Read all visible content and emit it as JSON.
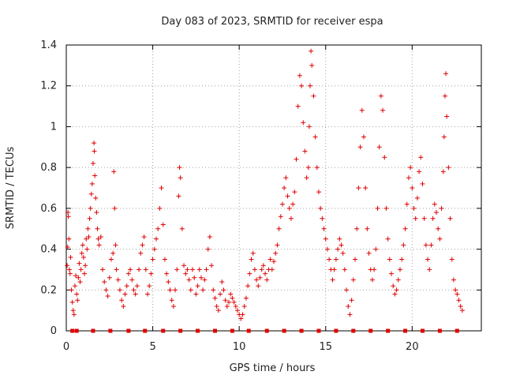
{
  "colors": {
    "marker": "#e00000",
    "axis": "#000000",
    "grid": "#a0a0a0",
    "text": "#222222"
  },
  "chart_data": {
    "type": "scatter",
    "title": "Day 083 of 2023, SRMTID for receiver espa",
    "xlabel": "GPS time / hours",
    "ylabel": "SRMTID / TECUs",
    "xlim": [
      0,
      24
    ],
    "ylim": [
      0,
      1.4
    ],
    "xticks": [
      0,
      5,
      10,
      15,
      20
    ],
    "xtick_labels": [
      "0",
      "5",
      "10",
      "15",
      "20"
    ],
    "yticks": [
      0,
      0.2,
      0.4,
      0.6,
      0.8,
      1.0,
      1.2,
      1.4
    ],
    "ytick_labels": [
      "0",
      "0.2",
      "0.4",
      "0.6",
      "0.8",
      "1",
      "1.2",
      "1.4"
    ],
    "grid": true,
    "marker": "+",
    "baseline_markers": {
      "y": 0,
      "x": [
        0.35,
        0.6,
        1.55,
        2.55,
        3.6,
        4.55,
        5.6,
        6.6,
        7.6,
        8.6,
        9.6,
        10.55,
        11.6,
        12.6,
        13.6,
        14.6,
        15.6,
        16.6,
        17.6,
        18.6,
        19.6,
        20.6,
        21.6,
        22.6
      ]
    },
    "points": [
      [
        0.05,
        0.32
      ],
      [
        0.08,
        0.41
      ],
      [
        0.1,
        0.58
      ],
      [
        0.12,
        0.56
      ],
      [
        0.15,
        0.45
      ],
      [
        0.18,
        0.3
      ],
      [
        0.22,
        0.28
      ],
      [
        0.25,
        0.36
      ],
      [
        0.3,
        0.2
      ],
      [
        0.35,
        0.14
      ],
      [
        0.4,
        0.1
      ],
      [
        0.45,
        0.08
      ],
      [
        0.5,
        0.22
      ],
      [
        0.55,
        0.27
      ],
      [
        0.6,
        0.18
      ],
      [
        0.65,
        0.15
      ],
      [
        0.7,
        0.26
      ],
      [
        0.75,
        0.33
      ],
      [
        0.8,
        0.24
      ],
      [
        0.85,
        0.3
      ],
      [
        0.9,
        0.38
      ],
      [
        0.95,
        0.42
      ],
      [
        1.0,
        0.36
      ],
      [
        1.05,
        0.28
      ],
      [
        1.1,
        0.32
      ],
      [
        1.15,
        0.45
      ],
      [
        1.2,
        0.4
      ],
      [
        1.25,
        0.5
      ],
      [
        1.3,
        0.46
      ],
      [
        1.35,
        0.55
      ],
      [
        1.4,
        0.6
      ],
      [
        1.45,
        0.67
      ],
      [
        1.5,
        0.72
      ],
      [
        1.55,
        0.82
      ],
      [
        1.6,
        0.92
      ],
      [
        1.62,
        0.88
      ],
      [
        1.65,
        0.76
      ],
      [
        1.7,
        0.65
      ],
      [
        1.75,
        0.58
      ],
      [
        1.8,
        0.5
      ],
      [
        1.85,
        0.45
      ],
      [
        1.9,
        0.42
      ],
      [
        2.0,
        0.46
      ],
      [
        2.1,
        0.3
      ],
      [
        2.2,
        0.24
      ],
      [
        2.3,
        0.2
      ],
      [
        2.4,
        0.17
      ],
      [
        2.5,
        0.26
      ],
      [
        2.6,
        0.35
      ],
      [
        2.7,
        0.38
      ],
      [
        2.75,
        0.78
      ],
      [
        2.8,
        0.6
      ],
      [
        2.85,
        0.42
      ],
      [
        2.9,
        0.3
      ],
      [
        3.0,
        0.25
      ],
      [
        3.1,
        0.2
      ],
      [
        3.2,
        0.15
      ],
      [
        3.3,
        0.12
      ],
      [
        3.4,
        0.18
      ],
      [
        3.5,
        0.22
      ],
      [
        3.6,
        0.28
      ],
      [
        3.7,
        0.3
      ],
      [
        3.8,
        0.25
      ],
      [
        3.9,
        0.2
      ],
      [
        4.0,
        0.18
      ],
      [
        4.1,
        0.22
      ],
      [
        4.2,
        0.3
      ],
      [
        4.3,
        0.38
      ],
      [
        4.4,
        0.42
      ],
      [
        4.5,
        0.46
      ],
      [
        4.6,
        0.3
      ],
      [
        4.7,
        0.18
      ],
      [
        4.8,
        0.22
      ],
      [
        4.9,
        0.28
      ],
      [
        5.0,
        0.35
      ],
      [
        5.1,
        0.4
      ],
      [
        5.2,
        0.45
      ],
      [
        5.3,
        0.5
      ],
      [
        5.4,
        0.6
      ],
      [
        5.5,
        0.7
      ],
      [
        5.6,
        0.52
      ],
      [
        5.7,
        0.35
      ],
      [
        5.8,
        0.28
      ],
      [
        5.9,
        0.24
      ],
      [
        6.0,
        0.2
      ],
      [
        6.1,
        0.15
      ],
      [
        6.2,
        0.12
      ],
      [
        6.3,
        0.2
      ],
      [
        6.4,
        0.3
      ],
      [
        6.5,
        0.66
      ],
      [
        6.55,
        0.8
      ],
      [
        6.6,
        0.75
      ],
      [
        6.7,
        0.5
      ],
      [
        6.8,
        0.32
      ],
      [
        6.9,
        0.28
      ],
      [
        7.0,
        0.3
      ],
      [
        7.1,
        0.25
      ],
      [
        7.2,
        0.2
      ],
      [
        7.3,
        0.3
      ],
      [
        7.4,
        0.26
      ],
      [
        7.5,
        0.18
      ],
      [
        7.6,
        0.22
      ],
      [
        7.7,
        0.3
      ],
      [
        7.8,
        0.26
      ],
      [
        7.9,
        0.2
      ],
      [
        8.0,
        0.25
      ],
      [
        8.1,
        0.3
      ],
      [
        8.2,
        0.4
      ],
      [
        8.3,
        0.46
      ],
      [
        8.4,
        0.32
      ],
      [
        8.5,
        0.2
      ],
      [
        8.6,
        0.16
      ],
      [
        8.7,
        0.12
      ],
      [
        8.8,
        0.1
      ],
      [
        8.9,
        0.18
      ],
      [
        9.0,
        0.24
      ],
      [
        9.1,
        0.2
      ],
      [
        9.2,
        0.15
      ],
      [
        9.3,
        0.12
      ],
      [
        9.4,
        0.14
      ],
      [
        9.5,
        0.18
      ],
      [
        9.6,
        0.16
      ],
      [
        9.7,
        0.14
      ],
      [
        9.8,
        0.12
      ],
      [
        9.9,
        0.1
      ],
      [
        10.0,
        0.08
      ],
      [
        10.1,
        0.06
      ],
      [
        10.2,
        0.08
      ],
      [
        10.3,
        0.12
      ],
      [
        10.4,
        0.16
      ],
      [
        10.5,
        0.22
      ],
      [
        10.6,
        0.28
      ],
      [
        10.7,
        0.35
      ],
      [
        10.8,
        0.38
      ],
      [
        10.9,
        0.3
      ],
      [
        11.0,
        0.25
      ],
      [
        11.1,
        0.22
      ],
      [
        11.2,
        0.26
      ],
      [
        11.3,
        0.3
      ],
      [
        11.4,
        0.32
      ],
      [
        11.5,
        0.28
      ],
      [
        11.6,
        0.25
      ],
      [
        11.7,
        0.3
      ],
      [
        11.8,
        0.35
      ],
      [
        11.9,
        0.3
      ],
      [
        12.0,
        0.34
      ],
      [
        12.1,
        0.38
      ],
      [
        12.2,
        0.42
      ],
      [
        12.3,
        0.5
      ],
      [
        12.4,
        0.56
      ],
      [
        12.5,
        0.62
      ],
      [
        12.6,
        0.7
      ],
      [
        12.7,
        0.75
      ],
      [
        12.8,
        0.66
      ],
      [
        12.9,
        0.6
      ],
      [
        13.0,
        0.55
      ],
      [
        13.1,
        0.62
      ],
      [
        13.2,
        0.68
      ],
      [
        13.3,
        0.84
      ],
      [
        13.4,
        1.1
      ],
      [
        13.5,
        1.25
      ],
      [
        13.6,
        1.2
      ],
      [
        13.7,
        1.02
      ],
      [
        13.8,
        0.88
      ],
      [
        13.9,
        0.75
      ],
      [
        14.0,
        0.8
      ],
      [
        14.05,
        1.0
      ],
      [
        14.1,
        1.2
      ],
      [
        14.15,
        1.37
      ],
      [
        14.2,
        1.3
      ],
      [
        14.3,
        1.15
      ],
      [
        14.4,
        0.95
      ],
      [
        14.5,
        0.8
      ],
      [
        14.6,
        0.68
      ],
      [
        14.7,
        0.6
      ],
      [
        14.8,
        0.55
      ],
      [
        14.9,
        0.5
      ],
      [
        15.0,
        0.45
      ],
      [
        15.1,
        0.4
      ],
      [
        15.2,
        0.35
      ],
      [
        15.3,
        0.3
      ],
      [
        15.4,
        0.25
      ],
      [
        15.5,
        0.3
      ],
      [
        15.6,
        0.35
      ],
      [
        15.7,
        0.4
      ],
      [
        15.8,
        0.45
      ],
      [
        15.9,
        0.42
      ],
      [
        16.0,
        0.38
      ],
      [
        16.1,
        0.3
      ],
      [
        16.2,
        0.2
      ],
      [
        16.3,
        0.12
      ],
      [
        16.4,
        0.08
      ],
      [
        16.5,
        0.15
      ],
      [
        16.6,
        0.25
      ],
      [
        16.7,
        0.35
      ],
      [
        16.8,
        0.5
      ],
      [
        16.9,
        0.7
      ],
      [
        17.0,
        0.9
      ],
      [
        17.1,
        1.08
      ],
      [
        17.2,
        0.95
      ],
      [
        17.3,
        0.7
      ],
      [
        17.4,
        0.5
      ],
      [
        17.5,
        0.38
      ],
      [
        17.6,
        0.3
      ],
      [
        17.7,
        0.25
      ],
      [
        17.8,
        0.3
      ],
      [
        17.9,
        0.4
      ],
      [
        18.0,
        0.6
      ],
      [
        18.1,
        0.9
      ],
      [
        18.2,
        1.15
      ],
      [
        18.3,
        1.08
      ],
      [
        18.4,
        0.85
      ],
      [
        18.5,
        0.6
      ],
      [
        18.6,
        0.45
      ],
      [
        18.7,
        0.35
      ],
      [
        18.8,
        0.28
      ],
      [
        18.9,
        0.22
      ],
      [
        19.0,
        0.18
      ],
      [
        19.1,
        0.2
      ],
      [
        19.2,
        0.25
      ],
      [
        19.3,
        0.3
      ],
      [
        19.4,
        0.35
      ],
      [
        19.5,
        0.42
      ],
      [
        19.6,
        0.5
      ],
      [
        19.7,
        0.62
      ],
      [
        19.8,
        0.75
      ],
      [
        19.9,
        0.8
      ],
      [
        20.0,
        0.7
      ],
      [
        20.1,
        0.6
      ],
      [
        20.2,
        0.55
      ],
      [
        20.3,
        0.65
      ],
      [
        20.4,
        0.78
      ],
      [
        20.5,
        0.85
      ],
      [
        20.6,
        0.72
      ],
      [
        20.7,
        0.55
      ],
      [
        20.8,
        0.42
      ],
      [
        20.9,
        0.35
      ],
      [
        21.0,
        0.3
      ],
      [
        21.1,
        0.42
      ],
      [
        21.2,
        0.55
      ],
      [
        21.3,
        0.62
      ],
      [
        21.4,
        0.58
      ],
      [
        21.5,
        0.5
      ],
      [
        21.6,
        0.45
      ],
      [
        21.7,
        0.6
      ],
      [
        21.8,
        0.78
      ],
      [
        21.85,
        0.95
      ],
      [
        21.9,
        1.15
      ],
      [
        21.95,
        1.26
      ],
      [
        22.0,
        1.05
      ],
      [
        22.1,
        0.8
      ],
      [
        22.2,
        0.55
      ],
      [
        22.3,
        0.35
      ],
      [
        22.4,
        0.25
      ],
      [
        22.5,
        0.2
      ],
      [
        22.6,
        0.18
      ],
      [
        22.7,
        0.15
      ],
      [
        22.8,
        0.12
      ],
      [
        22.9,
        0.1
      ]
    ]
  }
}
